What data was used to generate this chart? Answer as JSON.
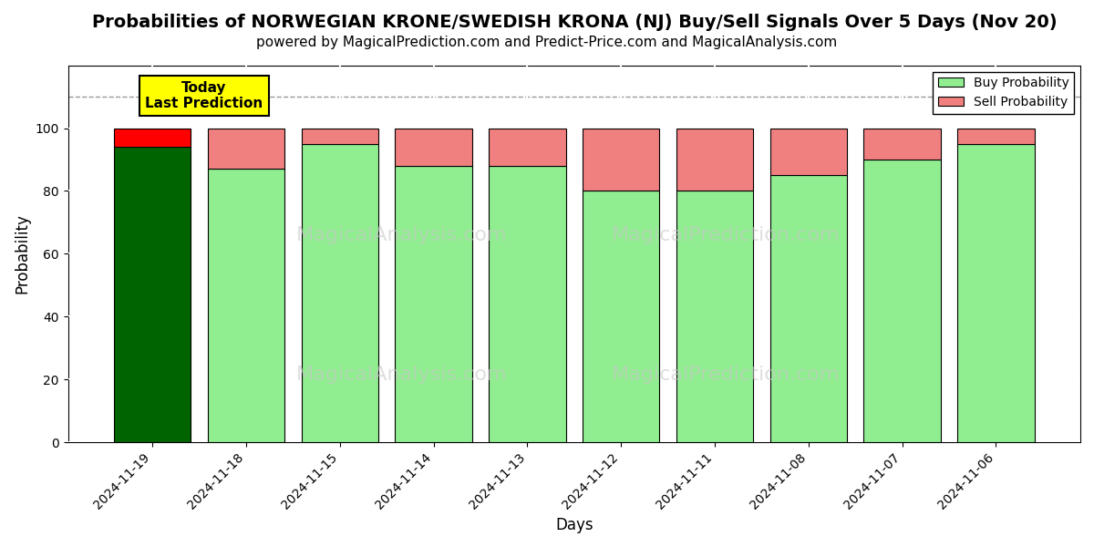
{
  "title": "Probabilities of NORWEGIAN KRONE/SWEDISH KRONA (NJ) Buy/Sell Signals Over 5 Days (Nov 20)",
  "subtitle": "powered by MagicalPrediction.com and Predict-Price.com and MagicalAnalysis.com",
  "xlabel": "Days",
  "ylabel": "Probability",
  "dates": [
    "2024-11-19",
    "2024-11-18",
    "2024-11-15",
    "2024-11-14",
    "2024-11-13",
    "2024-11-12",
    "2024-11-11",
    "2024-11-08",
    "2024-11-07",
    "2024-11-06"
  ],
  "buy_values": [
    94,
    87,
    95,
    88,
    88,
    80,
    80,
    85,
    90,
    95
  ],
  "sell_values": [
    6,
    13,
    5,
    12,
    12,
    20,
    20,
    15,
    10,
    5
  ],
  "today_buy_color": "#006400",
  "today_sell_color": "#FF0000",
  "buy_color": "#90EE90",
  "sell_color": "#F08080",
  "today_annotation_bg": "#FFFF00",
  "today_annotation_text": "Today\nLast Prediction",
  "bar_edgecolor": "#000000",
  "ylim": [
    0,
    120
  ],
  "yticks": [
    0,
    20,
    40,
    60,
    80,
    100
  ],
  "dashed_line_y": 110,
  "legend_buy_label": "Buy Probability",
  "legend_sell_label": "Sell Probability",
  "watermark1_text": "MagicalAnalysis.com",
  "watermark2_text": "MagicalPrediction.com",
  "title_fontsize": 14,
  "subtitle_fontsize": 11,
  "axis_label_fontsize": 12,
  "tick_fontsize": 10,
  "bg_color": "#ffffff",
  "grid_color": "#ffffff",
  "outer_bg": "#ffffff"
}
